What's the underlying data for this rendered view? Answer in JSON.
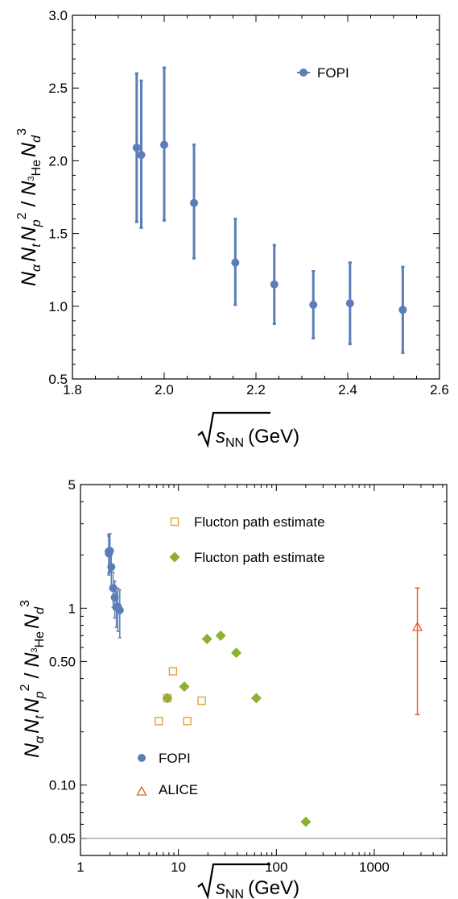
{
  "chart_data": [
    {
      "type": "scatter",
      "title": "",
      "xlabel": {
        "root": "s",
        "sub": "NN",
        "unit": "(GeV)"
      },
      "ylabel": {
        "alpha": "α",
        "t": "t",
        "p": "p",
        "sq": "2",
        "slash": " / ",
        "he": "He",
        "he_mass": "3",
        "d": "d",
        "cube": "3"
      },
      "xlim": [
        1.8,
        2.6
      ],
      "ylim": [
        0.5,
        3.0
      ],
      "x_ticks": [
        "1.8",
        "2.0",
        "2.2",
        "2.4",
        "2.6"
      ],
      "y_ticks": [
        "0.5",
        "1.0",
        "1.5",
        "2.0",
        "2.5",
        "3.0"
      ],
      "legend_position": "top-right",
      "series": [
        {
          "name": "FOPI",
          "color": "#5B7DB8",
          "marker": "circle",
          "x": [
            1.94,
            1.95,
            2.0,
            2.065,
            2.155,
            2.24,
            2.325,
            2.405,
            2.52
          ],
          "y": [
            2.09,
            2.04,
            2.11,
            1.71,
            1.3,
            1.15,
            1.01,
            1.02,
            0.975
          ],
          "err_low": [
            1.58,
            1.54,
            1.59,
            1.33,
            1.01,
            0.88,
            0.78,
            0.74,
            0.68
          ],
          "err_high": [
            2.6,
            2.55,
            2.64,
            2.11,
            1.6,
            1.42,
            1.24,
            1.3,
            1.27
          ]
        }
      ]
    },
    {
      "type": "scatter",
      "title": "",
      "xlabel": {
        "root": "s",
        "sub": "NN",
        "unit": "(GeV)"
      },
      "ylabel": {
        "alpha": "α",
        "t": "t",
        "p": "p",
        "sq": "2",
        "slash": " / ",
        "he": "He",
        "he_mass": "3",
        "d": "d",
        "cube": "3"
      },
      "x_scale": "log",
      "y_scale": "log",
      "xlim": [
        1,
        5500
      ],
      "ylim": [
        0.04,
        5
      ],
      "x_ticks": [
        {
          "value": 1,
          "label": "1"
        },
        {
          "value": 10,
          "label": "10"
        },
        {
          "value": 100,
          "label": "100"
        },
        {
          "value": 1000,
          "label": "1000"
        }
      ],
      "y_ticks": [
        {
          "value": 0.05,
          "label": "0.05"
        },
        {
          "value": 0.1,
          "label": "0.10"
        },
        {
          "value": 0.5,
          "label": "0.50"
        },
        {
          "value": 1,
          "label": "1"
        },
        {
          "value": 5,
          "label": "5"
        }
      ],
      "reference_line_y": 0.05,
      "legends": [
        {
          "position": "top-center",
          "entries": [
            "Flucton path estimate",
            "Flucton path estimate"
          ]
        },
        {
          "position": "bottom-left",
          "entries": [
            "FOPI",
            "ALICE"
          ]
        }
      ],
      "series": [
        {
          "name": "Flucton path estimate",
          "color": "#E0A040",
          "marker": "open-square",
          "x": [
            6.3,
            7.7,
            8.8,
            12.3,
            17.3
          ],
          "y": [
            0.23,
            0.31,
            0.44,
            0.23,
            0.3
          ]
        },
        {
          "name": "Flucton path estimate",
          "color": "#8DB030",
          "marker": "diamond",
          "x": [
            7.7,
            11.5,
            19.6,
            27,
            39,
            62.4,
            200
          ],
          "y": [
            0.31,
            0.36,
            0.67,
            0.7,
            0.56,
            0.31,
            0.062
          ]
        },
        {
          "name": "FOPI",
          "color": "#5B7DB8",
          "marker": "circle",
          "x": [
            1.94,
            1.95,
            2.0,
            2.065,
            2.155,
            2.24,
            2.325,
            2.405,
            2.52
          ],
          "y": [
            2.09,
            2.04,
            2.11,
            1.71,
            1.3,
            1.15,
            1.01,
            1.02,
            0.975
          ],
          "err_low": [
            1.58,
            1.54,
            1.59,
            1.33,
            1.01,
            0.88,
            0.78,
            0.74,
            0.68
          ],
          "err_high": [
            2.6,
            2.55,
            2.64,
            2.11,
            1.6,
            1.42,
            1.24,
            1.3,
            1.27
          ]
        },
        {
          "name": "ALICE",
          "color": "#E06030",
          "marker": "open-triangle",
          "x": [
            2760
          ],
          "y": [
            0.78
          ],
          "err_low": [
            0.25
          ],
          "err_high": [
            1.3
          ]
        }
      ]
    }
  ]
}
